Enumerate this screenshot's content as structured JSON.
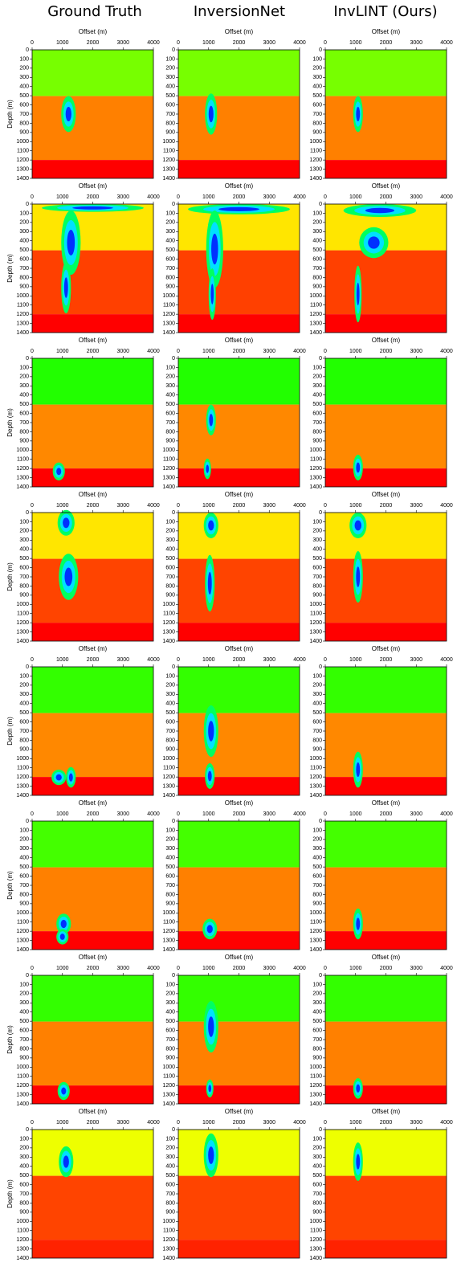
{
  "columns": [
    "Ground Truth",
    "InversionNet",
    "InvLINT (Ours)"
  ],
  "x_label": "Offset (m)",
  "y_label": "Depth (m)",
  "xlim": [
    0,
    4000
  ],
  "xticks": [
    0,
    1000,
    2000,
    3000,
    4000
  ],
  "ylim": [
    0,
    1400
  ],
  "yticks": [
    0,
    100,
    200,
    300,
    400,
    500,
    600,
    700,
    800,
    900,
    1000,
    1100,
    1200,
    1300,
    1400
  ],
  "rows": [
    {
      "layer_colors": [
        "#77ff00",
        "#ff8000",
        "#ff0000"
      ]
    },
    {
      "layer_colors": [
        "#ffe600",
        "#ff4000",
        "#ff0000"
      ]
    },
    {
      "layer_colors": [
        "#22ff00",
        "#ff8800",
        "#ff0000"
      ]
    },
    {
      "layer_colors": [
        "#ffe600",
        "#ff4400",
        "#ff0000"
      ]
    },
    {
      "layer_colors": [
        "#33ff00",
        "#ff8800",
        "#ff0000"
      ]
    },
    {
      "layer_colors": [
        "#44ff00",
        "#ff8000",
        "#ff0000"
      ]
    },
    {
      "layer_colors": [
        "#33ff00",
        "#ff8000",
        "#ff0000"
      ]
    },
    {
      "layer_colors": [
        "#eeff00",
        "#ff4400",
        "#ff2200"
      ]
    }
  ]
}
